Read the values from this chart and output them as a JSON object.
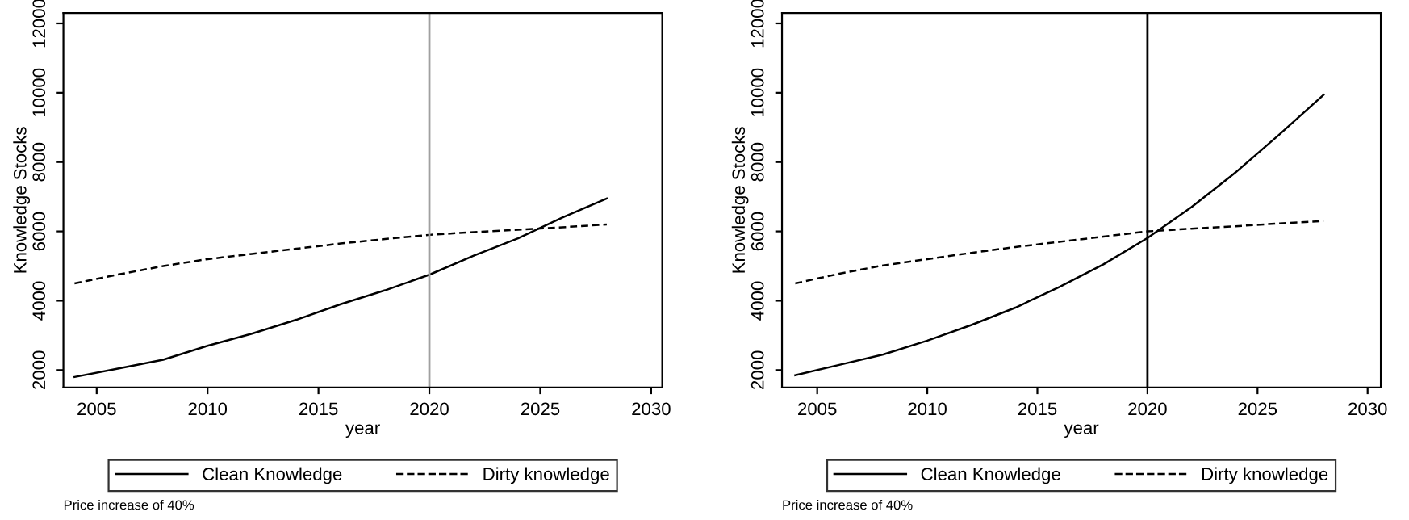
{
  "chart_data": [
    {
      "type": "line",
      "xlabel": "year",
      "ylabel": "Knowledge Stocks",
      "xlim": [
        2003.5,
        2030.5
      ],
      "ylim": [
        1500,
        12300
      ],
      "xticks": [
        2005,
        2010,
        2015,
        2020,
        2025,
        2030
      ],
      "yticks": [
        2000,
        4000,
        6000,
        8000,
        10000,
        12000
      ],
      "grid": false,
      "legend": "bottom",
      "marker": "none",
      "x": [
        2004,
        2006,
        2008,
        2010,
        2012,
        2014,
        2016,
        2018,
        2020,
        2022,
        2024,
        2026,
        2028
      ],
      "series": [
        {
          "name": "Clean Knowledge",
          "color": "#000000",
          "line_style": "solid",
          "values": [
            1800,
            2050,
            2300,
            2700,
            3050,
            3450,
            3900,
            4300,
            4750,
            5300,
            5800,
            6400,
            6950
          ]
        },
        {
          "name": "Dirty knowledge",
          "color": "#000000",
          "line_style": "dashed",
          "values": [
            4500,
            4760,
            5000,
            5200,
            5350,
            5500,
            5650,
            5780,
            5900,
            5980,
            6050,
            6120,
            6200
          ]
        }
      ],
      "ref_lines": [
        {
          "axis": "x",
          "value": 2020,
          "label": null,
          "color": "#a0a0a0"
        }
      ],
      "annotations": [
        "Price increase of 40%"
      ]
    },
    {
      "type": "line",
      "xlabel": "year",
      "ylabel": "Knowledge Stocks",
      "xlim": [
        2003.4,
        2030.6
      ],
      "ylim": [
        1500,
        12300
      ],
      "xticks": [
        2005,
        2010,
        2015,
        2020,
        2025,
        2030
      ],
      "yticks": [
        2000,
        4000,
        6000,
        8000,
        10000,
        12000
      ],
      "grid": false,
      "legend": "bottom",
      "marker": "none",
      "x": [
        2004,
        2006,
        2008,
        2010,
        2012,
        2014,
        2016,
        2018,
        2020,
        2022,
        2024,
        2026,
        2028
      ],
      "series": [
        {
          "name": "Clean Knowledge",
          "color": "#000000",
          "line_style": "solid",
          "values": [
            1850,
            2150,
            2450,
            2850,
            3300,
            3800,
            4400,
            5050,
            5810,
            6700,
            7700,
            8800,
            9940
          ]
        },
        {
          "name": "Dirty knowledge",
          "color": "#000000",
          "line_style": "dashed",
          "values": [
            4500,
            4780,
            5020,
            5200,
            5380,
            5550,
            5700,
            5850,
            6000,
            6080,
            6150,
            6230,
            6300
          ]
        }
      ],
      "ref_lines": [
        {
          "axis": "x",
          "value": 2020,
          "label": null,
          "color": "#000000"
        }
      ],
      "annotations": [
        "Price increase of 40%"
      ]
    }
  ]
}
